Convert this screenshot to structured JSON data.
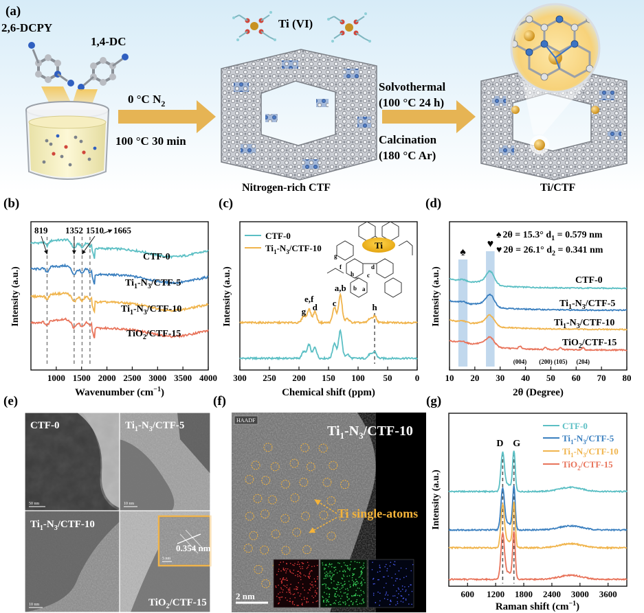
{
  "panel_a": {
    "label": "(a)",
    "reactant1": "2,6-DCPY",
    "reactant2": "1,4-DC",
    "ti_label": "Ti (VI)",
    "step1_line1": "0 °C  N",
    "step1_line1_sub": "2",
    "step1_line2": "100 °C  30 min",
    "step2_line1": "Solvothermal",
    "step2_line2": "(100 °C   24 h)",
    "step2_line3": "Calcination",
    "step2_line4": "(180 °C   Ar)",
    "product1": "Nitrogen-rich CTF",
    "product2": "Ti/CTF"
  },
  "series_names": {
    "ctf0": "CTF-0",
    "ti5_a": "Ti",
    "ti5_sub1": "1",
    "ti5_b": "-N",
    "ti5_sub2": "3",
    "ti5_c": "/CTF-5",
    "ti10_a": "Ti",
    "ti10_sub1": "1",
    "ti10_b": "-N",
    "ti10_sub2": "3",
    "ti10_c": "/CTF-10",
    "tio2_a": "TiO",
    "tio2_sub": "2",
    "tio2_c": "/CTF-15"
  },
  "colors": {
    "ctf0": "#5bbfc4",
    "ti5": "#3a7fbf",
    "ti10": "#f0b44c",
    "tio2": "#e8735a",
    "arrow": "#e6b454",
    "band": "#9fc3e4"
  },
  "chart_data": [
    {
      "type": "line",
      "label": "(b)",
      "xlabel": "Wavenumber (cm",
      "xlabel_sup": "−1",
      "xlabel_end": ")",
      "ylabel": "Intensity (a.u.)",
      "xlim": [
        500,
        4000
      ],
      "xticks": [
        1000,
        1500,
        2000,
        2500,
        3000,
        3500,
        4000
      ],
      "peaks": [
        819,
        1352,
        1510,
        1665
      ],
      "peak_labels": [
        "819",
        "1352",
        "1510",
        "1665"
      ],
      "series": [
        {
          "name": "CTF-0",
          "color_key": "ctf0",
          "offset": 3.0
        },
        {
          "name": "Ti1-N3/CTF-5",
          "color_key": "ti5",
          "offset": 2.0
        },
        {
          "name": "Ti1-N3/CTF-10",
          "color_key": "ti10",
          "offset": 1.0
        },
        {
          "name": "TiO2/CTF-15",
          "color_key": "tio2",
          "offset": 0.0
        }
      ]
    },
    {
      "type": "line",
      "label": "(c)",
      "xlabel": "Chemical shift (ppm)",
      "ylabel": "Intensity (a.u.)",
      "xlim": [
        300,
        0
      ],
      "xticks": [
        300,
        250,
        200,
        150,
        100,
        50,
        0
      ],
      "peak_labels": [
        "g",
        "e,f",
        "d",
        "c",
        "a,b",
        "h"
      ],
      "peak_positions": [
        192,
        183,
        173,
        140,
        130,
        72
      ],
      "structure_labels": [
        "g",
        "f",
        "h",
        "d",
        "c",
        "b",
        "a"
      ],
      "inset_label": "Ti",
      "series": [
        {
          "name": "CTF-0",
          "color_key": "ctf0"
        },
        {
          "name": "Ti1-N3/CTF-10",
          "color_key": "ti10"
        }
      ]
    },
    {
      "type": "line",
      "label": "(d)",
      "xlabel": "2θ (Degree)",
      "ylabel": "Intensity (a.u.)",
      "xlim": [
        10,
        80
      ],
      "xticks": [
        10,
        20,
        30,
        40,
        50,
        60,
        70,
        80
      ],
      "annotation1": "2θ = 15.3° d",
      "annotation1_sub": "1",
      "annotation1_end": " = 0.579 nm",
      "annotation2": "2θ = 26.1° d",
      "annotation2_sub": "2",
      "annotation2_end": " = 0.341 nm",
      "spade": "♠",
      "heart": "♥",
      "hkl": [
        "(004)",
        "(200)",
        "(105)",
        "(204)"
      ],
      "hkl_positions": [
        37.8,
        48.0,
        53.9,
        62.7
      ],
      "series": [
        {
          "name": "CTF-0",
          "color_key": "ctf0"
        },
        {
          "name": "Ti1-N3/CTF-5",
          "color_key": "ti5"
        },
        {
          "name": "Ti1-N3/CTF-10",
          "color_key": "ti10"
        },
        {
          "name": "TiO2/CTF-15",
          "color_key": "tio2"
        }
      ]
    },
    {
      "type": "line",
      "label": "(g)",
      "xlabel": "Raman shift (cm",
      "xlabel_sup": "−1",
      "xlabel_end": ")",
      "ylabel": "Intensity (a.u.)",
      "xlim": [
        200,
        4000
      ],
      "xticks": [
        600,
        1200,
        1800,
        2400,
        3000,
        3600
      ],
      "bands": [
        "D",
        "G"
      ],
      "band_positions": [
        1350,
        1590
      ],
      "series": [
        {
          "name": "CTF-0",
          "color_key": "ctf0"
        },
        {
          "name": "Ti1-N3/CTF-5",
          "color_key": "ti5"
        },
        {
          "name": "Ti1-N3/CTF-10",
          "color_key": "ti10"
        },
        {
          "name": "TiO2/CTF-15",
          "color_key": "tio2"
        }
      ]
    }
  ],
  "panel_e": {
    "label": "(e)",
    "tl": "CTF-0",
    "tr_a": "Ti",
    "tr_sub1": "1",
    "tr_b": "-N",
    "tr_sub2": "3",
    "tr_c": "/CTF-5",
    "bl_a": "Ti",
    "bl_sub1": "1",
    "bl_b": "-N",
    "bl_sub2": "3",
    "bl_c": "/CTF-10",
    "br_a": "TiO",
    "br_sub": "2",
    "br_c": "/CTF-15",
    "lattice": "0.354 nm",
    "scale_tl": "50 nm",
    "scale_tr": "10 nm",
    "scale_bl": "10 nm",
    "scale_inset": "5 nm"
  },
  "panel_f": {
    "label": "(f)",
    "mode": "HAADF",
    "title_a": "Ti",
    "title_sub1": "1",
    "title_b": "-N",
    "title_sub2": "3",
    "title_c": "/CTF-10",
    "annotation": "Ti single-atoms",
    "scale": "2 nm"
  }
}
